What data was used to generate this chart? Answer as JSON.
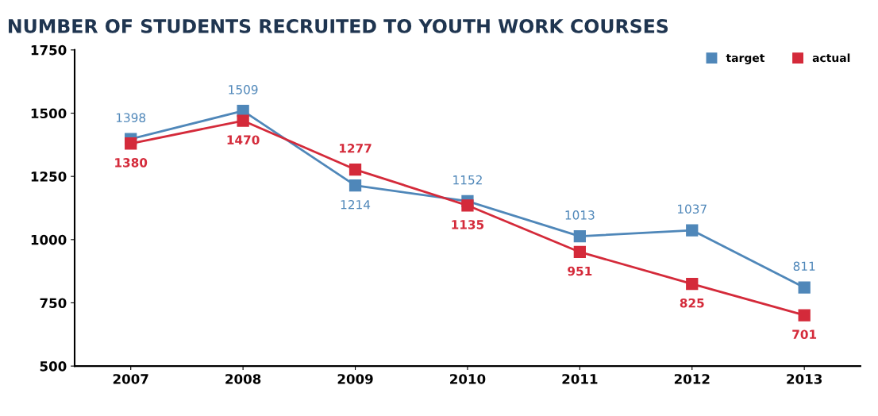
{
  "chart_data": {
    "type": "line",
    "title": "NUMBER OF STUDENTS RECRUITED TO YOUTH WORK COURSES",
    "categories": [
      "2007",
      "2008",
      "2009",
      "2010",
      "2011",
      "2012",
      "2013"
    ],
    "series": [
      {
        "name": "target",
        "color": "#4f87b9",
        "values": [
          1398,
          1509,
          1214,
          1152,
          1013,
          1037,
          811
        ]
      },
      {
        "name": "actual",
        "color": "#d42a3a",
        "values": [
          1380,
          1470,
          1277,
          1135,
          951,
          825,
          701
        ]
      }
    ],
    "ylim": [
      500,
      1750
    ],
    "yticks": [
      500,
      750,
      1000,
      1250,
      1500,
      1750
    ],
    "grid": false,
    "legend": "top right",
    "marker": "square",
    "line_style": "solid",
    "data_labels": true
  }
}
